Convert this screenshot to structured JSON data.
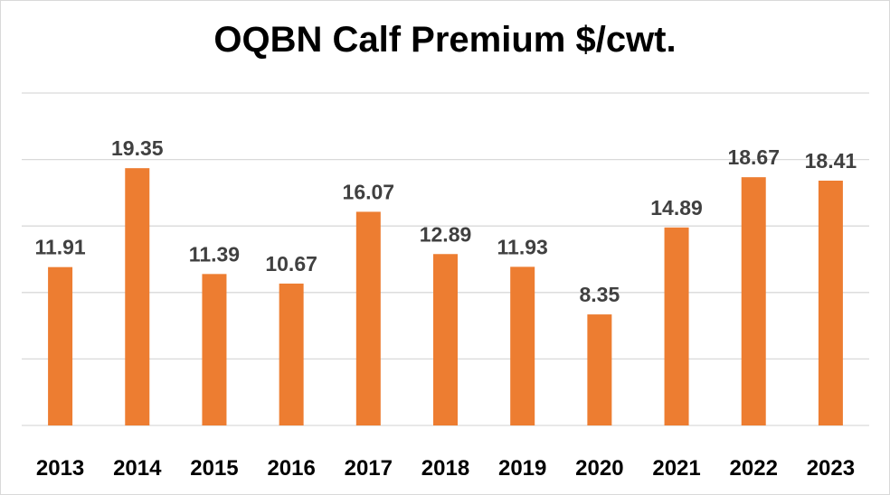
{
  "chart_data": {
    "type": "bar",
    "title": "OQBN Calf Premium $/cwt.",
    "categories": [
      "2013",
      "2014",
      "2015",
      "2016",
      "2017",
      "2018",
      "2019",
      "2020",
      "2021",
      "2022",
      "2023"
    ],
    "values": [
      11.91,
      19.35,
      11.39,
      10.67,
      16.07,
      12.89,
      11.93,
      8.35,
      14.89,
      18.67,
      18.41
    ],
    "data_labels": [
      "11.91",
      "19.35",
      "11.39",
      "10.67",
      "16.07",
      "12.89",
      "11.93",
      "8.35",
      "14.89",
      "18.67",
      "18.41"
    ],
    "xlabel": "",
    "ylabel": "",
    "ylim": [
      0,
      25
    ],
    "y_gridline_step": 5,
    "y_tick_labels_shown": false,
    "grid": true,
    "legend": "none",
    "bar_color": "#ED7D31",
    "grid_color": "#D9D9D9"
  }
}
